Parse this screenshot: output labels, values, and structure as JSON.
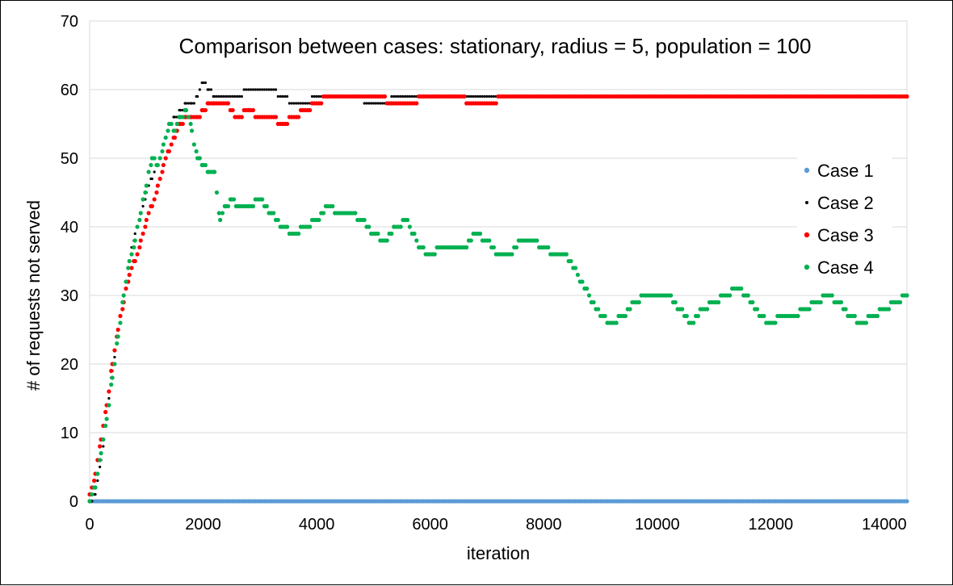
{
  "chart_data": {
    "type": "scatter",
    "title": "Comparison between cases: stationary, radius = 5, population = 100",
    "xlabel": "iteration",
    "ylabel": "# of requests not served",
    "xlim": [
      0,
      14400
    ],
    "ylim": [
      0,
      70
    ],
    "x_ticks": [
      0,
      2000,
      4000,
      6000,
      8000,
      10000,
      12000,
      14000
    ],
    "y_ticks": [
      0,
      10,
      20,
      30,
      40,
      50,
      60,
      70
    ],
    "grid": "horizontal",
    "legend_position": "right",
    "series": [
      {
        "name": "Case 1",
        "color": "#5B9BD5",
        "points": [
          [
            0,
            0
          ],
          [
            14400,
            0
          ]
        ]
      },
      {
        "name": "Case 2",
        "color": "#000000",
        "points": [
          [
            0,
            0
          ],
          [
            100,
            1
          ],
          [
            200,
            6
          ],
          [
            300,
            12
          ],
          [
            400,
            19
          ],
          [
            500,
            25
          ],
          [
            600,
            30
          ],
          [
            700,
            35
          ],
          [
            800,
            39
          ],
          [
            900,
            42
          ],
          [
            1000,
            45
          ],
          [
            1100,
            47
          ],
          [
            1200,
            49
          ],
          [
            1300,
            52
          ],
          [
            1400,
            55
          ],
          [
            1500,
            56
          ],
          [
            1600,
            57
          ],
          [
            1700,
            58
          ],
          [
            1800,
            58
          ],
          [
            1900,
            59
          ],
          [
            2000,
            61
          ],
          [
            2100,
            60
          ],
          [
            2200,
            59
          ],
          [
            2400,
            59
          ],
          [
            2600,
            59
          ],
          [
            2800,
            60
          ],
          [
            3000,
            60
          ],
          [
            3200,
            60
          ],
          [
            3400,
            59
          ],
          [
            3600,
            58
          ],
          [
            3800,
            58
          ],
          [
            4000,
            59
          ],
          [
            4200,
            59
          ],
          [
            4600,
            59
          ],
          [
            5000,
            58
          ],
          [
            5200,
            58
          ],
          [
            5400,
            59
          ],
          [
            5600,
            59
          ],
          [
            6000,
            59
          ],
          [
            6400,
            59
          ],
          [
            6800,
            59
          ],
          [
            7000,
            59
          ],
          [
            7400,
            59
          ],
          [
            8000,
            59
          ],
          [
            9000,
            59
          ],
          [
            10000,
            59
          ],
          [
            11000,
            59
          ],
          [
            12000,
            59
          ],
          [
            13000,
            59
          ],
          [
            14000,
            59
          ],
          [
            14400,
            59
          ]
        ]
      },
      {
        "name": "Case 3",
        "color": "#FF0000",
        "points": [
          [
            0,
            1
          ],
          [
            100,
            4
          ],
          [
            200,
            9
          ],
          [
            300,
            14
          ],
          [
            400,
            20
          ],
          [
            500,
            25
          ],
          [
            600,
            29
          ],
          [
            700,
            33
          ],
          [
            800,
            35
          ],
          [
            900,
            38
          ],
          [
            1000,
            41
          ],
          [
            1100,
            43
          ],
          [
            1200,
            46
          ],
          [
            1300,
            49
          ],
          [
            1400,
            51
          ],
          [
            1500,
            53
          ],
          [
            1600,
            55
          ],
          [
            1700,
            56
          ],
          [
            1800,
            56
          ],
          [
            1900,
            56
          ],
          [
            2000,
            57
          ],
          [
            2100,
            58
          ],
          [
            2200,
            58
          ],
          [
            2400,
            58
          ],
          [
            2600,
            56
          ],
          [
            2800,
            57
          ],
          [
            3000,
            56
          ],
          [
            3200,
            56
          ],
          [
            3400,
            55
          ],
          [
            3600,
            56
          ],
          [
            3800,
            57
          ],
          [
            4000,
            58
          ],
          [
            4200,
            59
          ],
          [
            4600,
            59
          ],
          [
            5000,
            59
          ],
          [
            5400,
            58
          ],
          [
            5600,
            58
          ],
          [
            6000,
            59
          ],
          [
            6400,
            59
          ],
          [
            6800,
            58
          ],
          [
            7000,
            58
          ],
          [
            7400,
            59
          ],
          [
            8000,
            59
          ],
          [
            9000,
            59
          ],
          [
            10000,
            59
          ],
          [
            11000,
            59
          ],
          [
            12000,
            59
          ],
          [
            13000,
            59
          ],
          [
            14000,
            59
          ],
          [
            14400,
            59
          ]
        ]
      },
      {
        "name": "Case 4",
        "color": "#00B050",
        "points": [
          [
            0,
            0
          ],
          [
            100,
            2
          ],
          [
            200,
            7
          ],
          [
            300,
            12
          ],
          [
            400,
            18
          ],
          [
            500,
            24
          ],
          [
            600,
            30
          ],
          [
            700,
            35
          ],
          [
            800,
            38
          ],
          [
            900,
            42
          ],
          [
            1000,
            46
          ],
          [
            1100,
            50
          ],
          [
            1200,
            49
          ],
          [
            1300,
            52
          ],
          [
            1400,
            55
          ],
          [
            1500,
            54
          ],
          [
            1600,
            56
          ],
          [
            1700,
            57
          ],
          [
            1800,
            54
          ],
          [
            1900,
            50
          ],
          [
            2000,
            49
          ],
          [
            2100,
            48
          ],
          [
            2200,
            48
          ],
          [
            2300,
            41
          ],
          [
            2400,
            43
          ],
          [
            2500,
            44
          ],
          [
            2600,
            43
          ],
          [
            2800,
            43
          ],
          [
            3000,
            44
          ],
          [
            3200,
            42
          ],
          [
            3400,
            40
          ],
          [
            3600,
            39
          ],
          [
            3800,
            40
          ],
          [
            4000,
            41
          ],
          [
            4200,
            43
          ],
          [
            4400,
            42
          ],
          [
            4600,
            42
          ],
          [
            4800,
            41
          ],
          [
            5000,
            39
          ],
          [
            5200,
            38
          ],
          [
            5400,
            40
          ],
          [
            5600,
            41
          ],
          [
            5800,
            37
          ],
          [
            6000,
            36
          ],
          [
            6200,
            37
          ],
          [
            6400,
            37
          ],
          [
            6600,
            37
          ],
          [
            6800,
            39
          ],
          [
            7000,
            38
          ],
          [
            7200,
            36
          ],
          [
            7400,
            36
          ],
          [
            7600,
            38
          ],
          [
            7800,
            38
          ],
          [
            8000,
            37
          ],
          [
            8200,
            36
          ],
          [
            8400,
            36
          ],
          [
            8600,
            33
          ],
          [
            8800,
            30
          ],
          [
            9000,
            27
          ],
          [
            9200,
            26
          ],
          [
            9400,
            27
          ],
          [
            9600,
            29
          ],
          [
            9800,
            30
          ],
          [
            10000,
            30
          ],
          [
            10200,
            30
          ],
          [
            10400,
            28
          ],
          [
            10600,
            26
          ],
          [
            10800,
            28
          ],
          [
            11000,
            29
          ],
          [
            11200,
            30
          ],
          [
            11400,
            31
          ],
          [
            11600,
            30
          ],
          [
            11800,
            27
          ],
          [
            12000,
            26
          ],
          [
            12200,
            27
          ],
          [
            12400,
            27
          ],
          [
            12600,
            28
          ],
          [
            12800,
            29
          ],
          [
            13000,
            30
          ],
          [
            13200,
            29
          ],
          [
            13400,
            27
          ],
          [
            13600,
            26
          ],
          [
            13800,
            27
          ],
          [
            14000,
            28
          ],
          [
            14200,
            29
          ],
          [
            14400,
            30
          ]
        ]
      }
    ]
  }
}
